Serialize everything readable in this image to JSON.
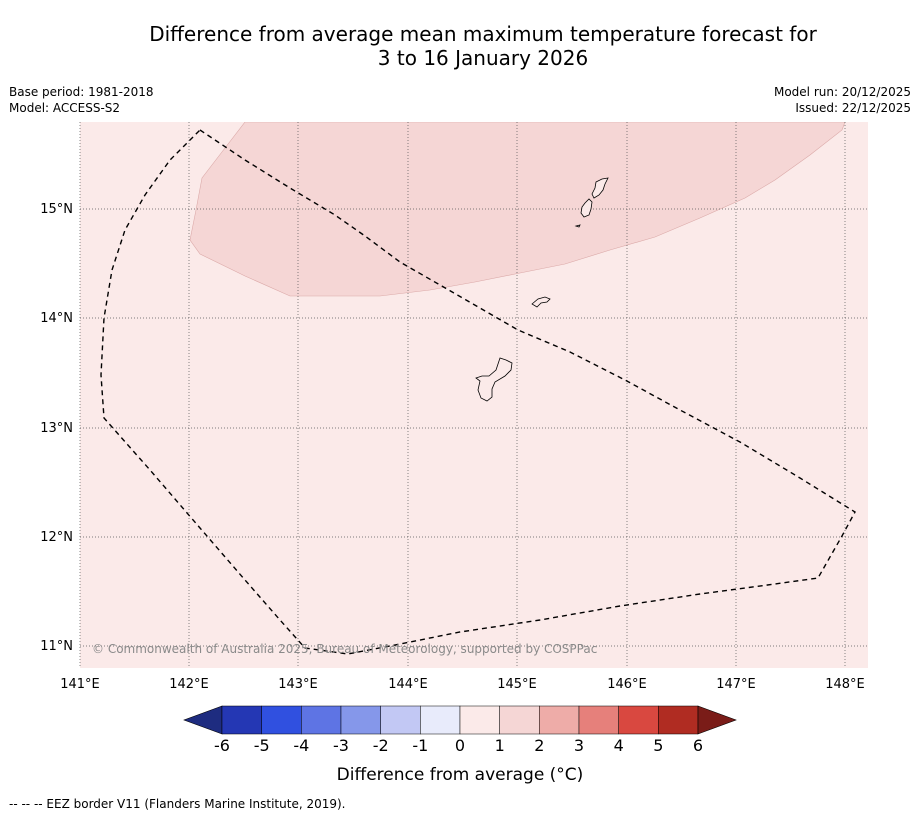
{
  "title": {
    "line1": "Difference from average mean maximum temperature forecast for",
    "line2": "3 to 16 January 2026"
  },
  "meta": {
    "base_period": "Base period: 1981-2018",
    "model": "Model: ACCESS-S2",
    "model_run": "Model run: 20/12/2025",
    "issued": "Issued: 22/12/2025"
  },
  "map": {
    "lon_ticks": [
      "141°E",
      "142°E",
      "143°E",
      "144°E",
      "145°E",
      "146°E",
      "147°E",
      "148°E"
    ],
    "lat_ticks": [
      "15°N",
      "14°N",
      "13°N",
      "12°N",
      "11°N"
    ],
    "credit": "© Commonwealth of Australia 2025, Bureau of Meteorology, supported by COSPPac",
    "colors": {
      "background_anomaly_0_1": "#fbeae9",
      "anomaly_1_2": "#f5d6d5",
      "grid": "#555555",
      "coast": "#000000",
      "eez": "#000000"
    },
    "features": [
      "eez-border",
      "guam",
      "rota",
      "tinian-saipan",
      "anomaly-1-2-zone"
    ]
  },
  "colorbar": {
    "labels": [
      "-6",
      "-5",
      "-4",
      "-3",
      "-2",
      "-1",
      "0",
      "1",
      "2",
      "3",
      "4",
      "5",
      "6"
    ],
    "colors": [
      "#1e2c80",
      "#2437b4",
      "#3050e0",
      "#5e74e4",
      "#8597ea",
      "#c2c8f4",
      "#e8ebfb",
      "#fbeae9",
      "#f5d6d5",
      "#eeaca8",
      "#e6807b",
      "#d94840",
      "#b02c22",
      "#7a1c18"
    ],
    "title": "Difference from average (°C)"
  },
  "footnote": "--  --  -- EEZ border V11 (Flanders Marine Institute, 2019)."
}
